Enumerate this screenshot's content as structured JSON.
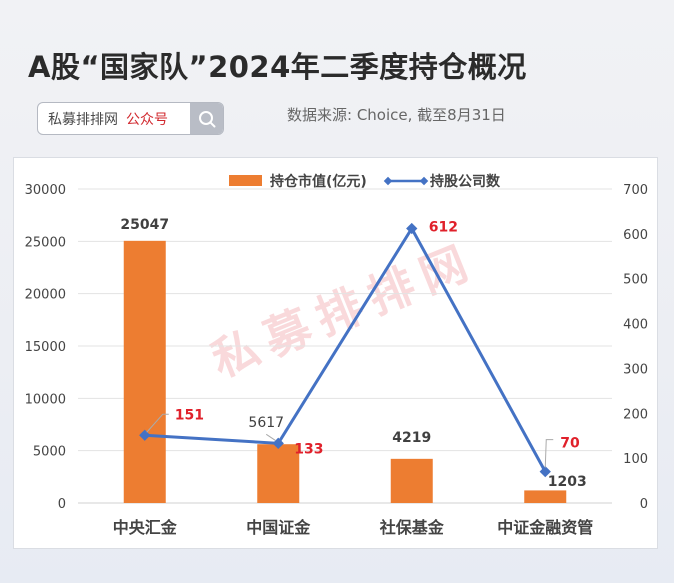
{
  "header": {
    "title": "A股“国家队”2024年二季度持仓概况",
    "search_brand": "私募排排网",
    "search_tag": "公众号",
    "source": "数据来源: Choice, 截至8月31日"
  },
  "watermark": "私募排排网",
  "colors": {
    "bar": "#ed7d31",
    "line": "#4472c4",
    "label_red": "#e0212b",
    "label_dark": "#404040",
    "grid": "#e3e3e3"
  },
  "chart_data": {
    "type": "bar",
    "title": "A股“国家队”2024年二季度持仓概况",
    "categories": [
      "中央汇金",
      "中国证金",
      "社保基金",
      "中证金融资管"
    ],
    "series": [
      {
        "name": "持仓市值(亿元)",
        "type": "bar",
        "axis": "left",
        "values": [
          25047,
          5617,
          4219,
          1203
        ]
      },
      {
        "name": "持股公司数",
        "type": "line",
        "axis": "right",
        "values": [
          151,
          133,
          612,
          70
        ]
      }
    ],
    "left_axis": {
      "ylim": [
        0,
        30000
      ],
      "ticks": [
        "0",
        "5000",
        "10000",
        "15000",
        "20000",
        "25000",
        "30000"
      ]
    },
    "right_axis": {
      "ylim": [
        0,
        700
      ],
      "ticks": [
        "0",
        "100",
        "200",
        "300",
        "400",
        "500",
        "600",
        "700"
      ]
    },
    "xlabel": "",
    "ylabel": "",
    "legend": {
      "position": "top",
      "entries": [
        "持仓市值(亿元)",
        "持股公司数"
      ]
    },
    "grid": true
  }
}
